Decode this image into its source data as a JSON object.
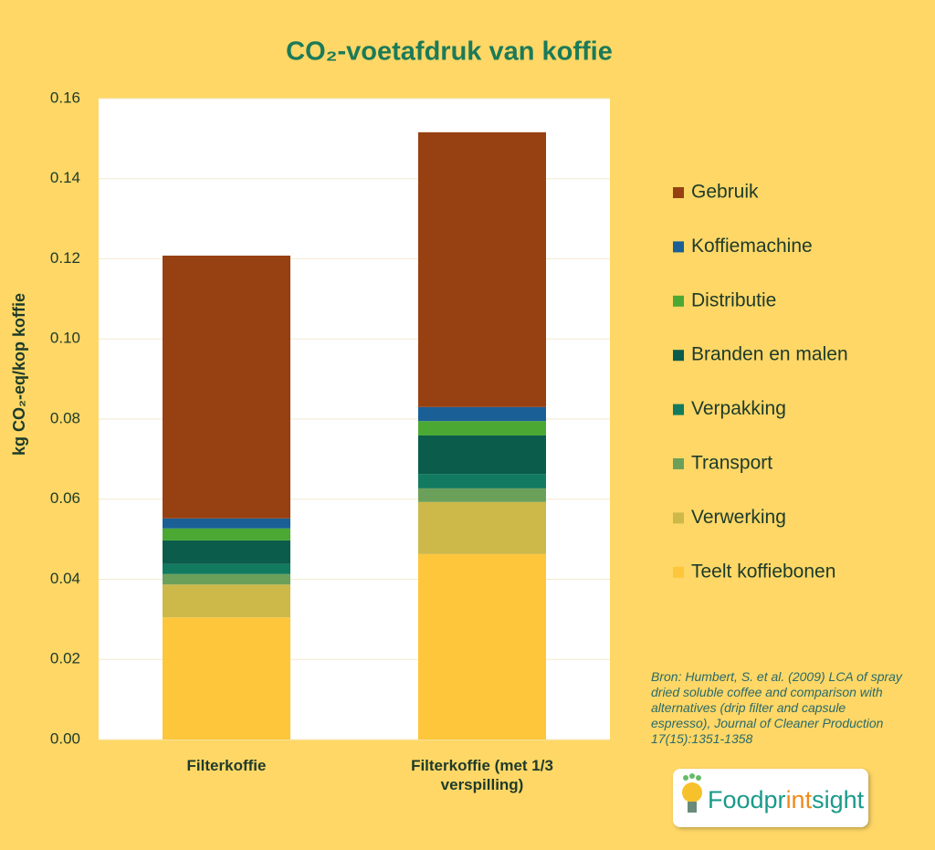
{
  "chart_data": {
    "type": "stacked_bar",
    "title": "CO₂-voetafdruk van koffie",
    "y_label": "kg CO₂-eq/kop koffie",
    "categories": [
      "Filterkoffie",
      "Filterkoffie (met 1/3 verspilling)"
    ],
    "series": [
      {
        "name": "Teelt koffiebonen",
        "color": "#fdc63b",
        "values": [
          0.0305,
          0.0463
        ]
      },
      {
        "name": "Verwerking",
        "color": "#ccb94a",
        "values": [
          0.0082,
          0.013
        ]
      },
      {
        "name": "Transport",
        "color": "#6ba05b",
        "values": [
          0.0026,
          0.0034
        ]
      },
      {
        "name": "Verpakking",
        "color": "#127b5f",
        "values": [
          0.0025,
          0.0036
        ]
      },
      {
        "name": "Branden en malen",
        "color": "#0b5c4b",
        "values": [
          0.0059,
          0.0096
        ]
      },
      {
        "name": "Distributie",
        "color": "#4aa833",
        "values": [
          0.003,
          0.0036
        ]
      },
      {
        "name": "Koffiemachine",
        "color": "#1b5f97",
        "values": [
          0.0025,
          0.0035
        ]
      },
      {
        "name": "Gebruik",
        "color": "#974011",
        "values": [
          0.0656,
          0.0686
        ]
      }
    ],
    "ylim": [
      0,
      0.16
    ],
    "yticks": [
      {
        "value": 0,
        "label": "0.00"
      },
      0.02,
      0.04,
      0.06,
      0.08,
      {
        "value": 0.1,
        "label": "0.10"
      },
      0.12,
      0.14,
      0.16
    ],
    "grid": true,
    "legend": "right",
    "source": "Bron: Humbert, S. et al. (2009) LCA of spray dried soluble coffee and comparison with alternatives (drip filter and capsule espresso), Journal of Cleaner Production 17(15):1351-1358",
    "logo": [
      "Foodpr",
      "int",
      "sight"
    ]
  }
}
